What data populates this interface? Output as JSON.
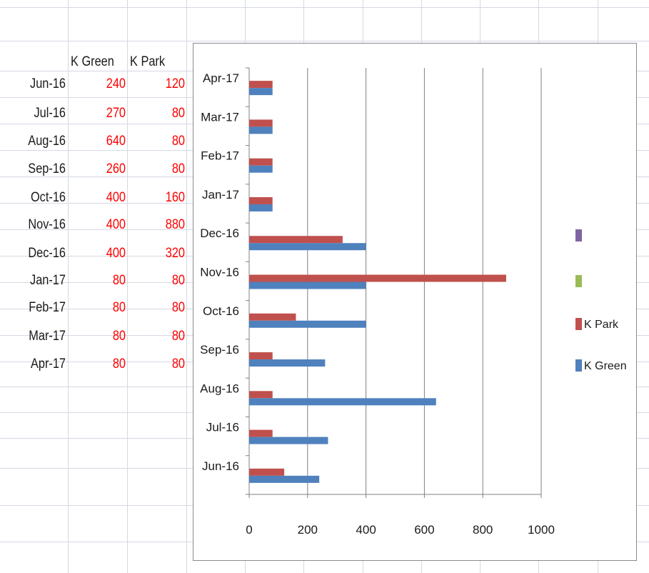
{
  "table": {
    "headers": [
      "K Green",
      "K Park"
    ],
    "rows": [
      {
        "month": "Jun-16",
        "k_green": "240",
        "k_park": "120"
      },
      {
        "month": "Jul-16",
        "k_green": "270",
        "k_park": "80"
      },
      {
        "month": "Aug-16",
        "k_green": "640",
        "k_park": "80"
      },
      {
        "month": "Sep-16",
        "k_green": "260",
        "k_park": "80"
      },
      {
        "month": "Oct-16",
        "k_green": "400",
        "k_park": "160"
      },
      {
        "month": "Nov-16",
        "k_green": "400",
        "k_park": "880"
      },
      {
        "month": "Dec-16",
        "k_green": "400",
        "k_park": "320"
      },
      {
        "month": "Jan-17",
        "k_green": "80",
        "k_park": "80"
      },
      {
        "month": "Feb-17",
        "k_green": "80",
        "k_park": "80"
      },
      {
        "month": "Mar-17",
        "k_green": "80",
        "k_park": "80"
      },
      {
        "month": "Apr-17",
        "k_green": "80",
        "k_park": "80"
      }
    ]
  },
  "colors": {
    "value_text": "#ff0000",
    "k_green": "#4f81bd",
    "k_park": "#c0504d",
    "legend_extra_1": "#8064a2",
    "legend_extra_2": "#9bbb59",
    "gridline": "#808080"
  },
  "chart_data": {
    "type": "bar",
    "orientation": "horizontal",
    "categories": [
      "Jun-16",
      "Jul-16",
      "Aug-16",
      "Sep-16",
      "Oct-16",
      "Nov-16",
      "Dec-16",
      "Jan-17",
      "Feb-17",
      "Mar-17",
      "Apr-17"
    ],
    "series": [
      {
        "name": "K Green",
        "values": [
          240,
          270,
          640,
          260,
          400,
          400,
          400,
          80,
          80,
          80,
          80
        ]
      },
      {
        "name": "K Park",
        "values": [
          120,
          80,
          80,
          80,
          160,
          880,
          320,
          80,
          80,
          80,
          80
        ]
      }
    ],
    "xlim": [
      0,
      1000
    ],
    "x_ticks": [
      "0",
      "200",
      "400",
      "600",
      "800",
      "1000"
    ],
    "title": "",
    "xlabel": "",
    "ylabel": "",
    "grid": "vertical major gridlines",
    "legend": {
      "placement": "right",
      "entries": [
        {
          "label": "",
          "color_key": "legend_extra_1"
        },
        {
          "label": "",
          "color_key": "legend_extra_2"
        },
        {
          "label": "K Park",
          "color_key": "k_park"
        },
        {
          "label": "K Green",
          "color_key": "k_green"
        }
      ]
    }
  }
}
